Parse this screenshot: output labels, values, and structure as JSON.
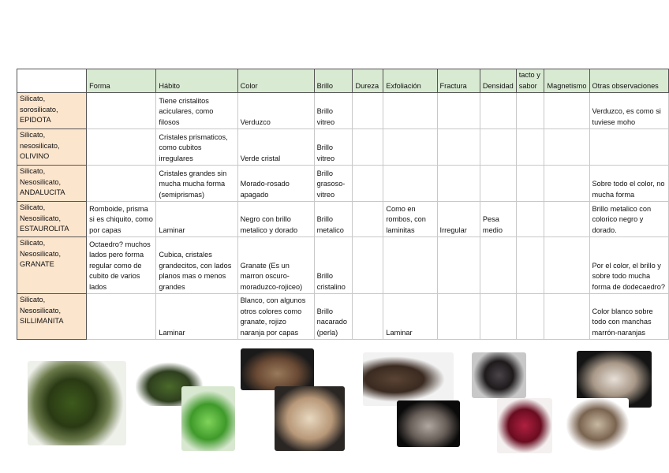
{
  "table": {
    "headers": [
      "",
      "Forma",
      "Hábito",
      "Color",
      "Brillo",
      "Dureza",
      "Exfoliación",
      "Fractura",
      "Densidad",
      "tacto y sabor",
      "Magnetismo",
      "Otras observaciones"
    ],
    "rows": [
      {
        "mineral": [
          "Silicato,",
          "sorosilicato,",
          "EPIDOTA"
        ],
        "cells": [
          "",
          "Tiene cristalitos aciculares, como filosos",
          "Verduzco",
          "Brillo vitreo",
          "",
          "",
          "",
          "",
          "",
          "",
          "Verduzco, es como si tuviese moho"
        ]
      },
      {
        "mineral": [
          "Silicato,",
          "nesosilicato,",
          "OLIVINO"
        ],
        "cells": [
          "",
          "Cristales prismaticos, como cubitos irregulares",
          "Verde cristal",
          "Brillo vitreo",
          "",
          "",
          "",
          "",
          "",
          "",
          ""
        ]
      },
      {
        "mineral": [
          "Silicato,",
          "Nesosilicato,",
          "ANDALUCITA"
        ],
        "cells": [
          "",
          "Cristales grandes sin mucha mucha forma (semiprismas)",
          "Morado-rosado apagado",
          "Brillo grasoso-vitreo",
          "",
          "",
          "",
          "",
          "",
          "",
          "Sobre todo el color, no mucha forma"
        ]
      },
      {
        "mineral": [
          "Silicato,",
          "Nesosilicato,",
          "ESTAUROLITA"
        ],
        "cells": [
          "Romboide, prisma si es chiquito, como por capas",
          "Laminar",
          "Negro con brillo metalico y dorado",
          "Brillo metalico",
          "",
          "Como en rombos, con laminitas",
          "Irregular",
          "Pesa medio",
          "",
          "",
          "Brillo metalico con colorico negro y dorado."
        ]
      },
      {
        "mineral": [
          "Silicato,",
          "Nesosilicato,",
          "GRANATE"
        ],
        "cells": [
          "Octaedro? muchos lados pero forma regular como de cubito de varios lados",
          "Cubica, cristales grandecitos, con lados planos mas o menos grandes",
          "Granate (Es un marron oscuro-moraduzco-rojiceo)",
          "Brillo cristalino",
          "",
          "",
          "",
          "",
          "",
          "",
          "Por el color, el brillo y sobre todo mucha forma de dodecaedro?"
        ]
      },
      {
        "mineral": [
          "Silicato,",
          "Nesosilicato,",
          "SILLIMANITA"
        ],
        "cells": [
          "",
          "Laminar",
          "Blanco, con algunos otros colores como granate, rojizo naranja por capas",
          "Brillo nacarado (perla)",
          "",
          "Laminar",
          "",
          "",
          "",
          "",
          "Color blanco sobre todo con manchas marrón-naranjas"
        ]
      }
    ]
  },
  "colors": {
    "header_bg": "#d9ead3",
    "mineral_bg": "#fce5cd"
  },
  "photos": [
    "epidota-photo",
    "olivino-photo",
    "olivino-crystal-photo",
    "andalucita-photo",
    "andalucita-photo-2",
    "estaurolita-photo",
    "estaurolita-photo-2",
    "granate-photo",
    "granate-photo-2",
    "sillimanita-photo",
    "sillimanita-photo-2"
  ]
}
